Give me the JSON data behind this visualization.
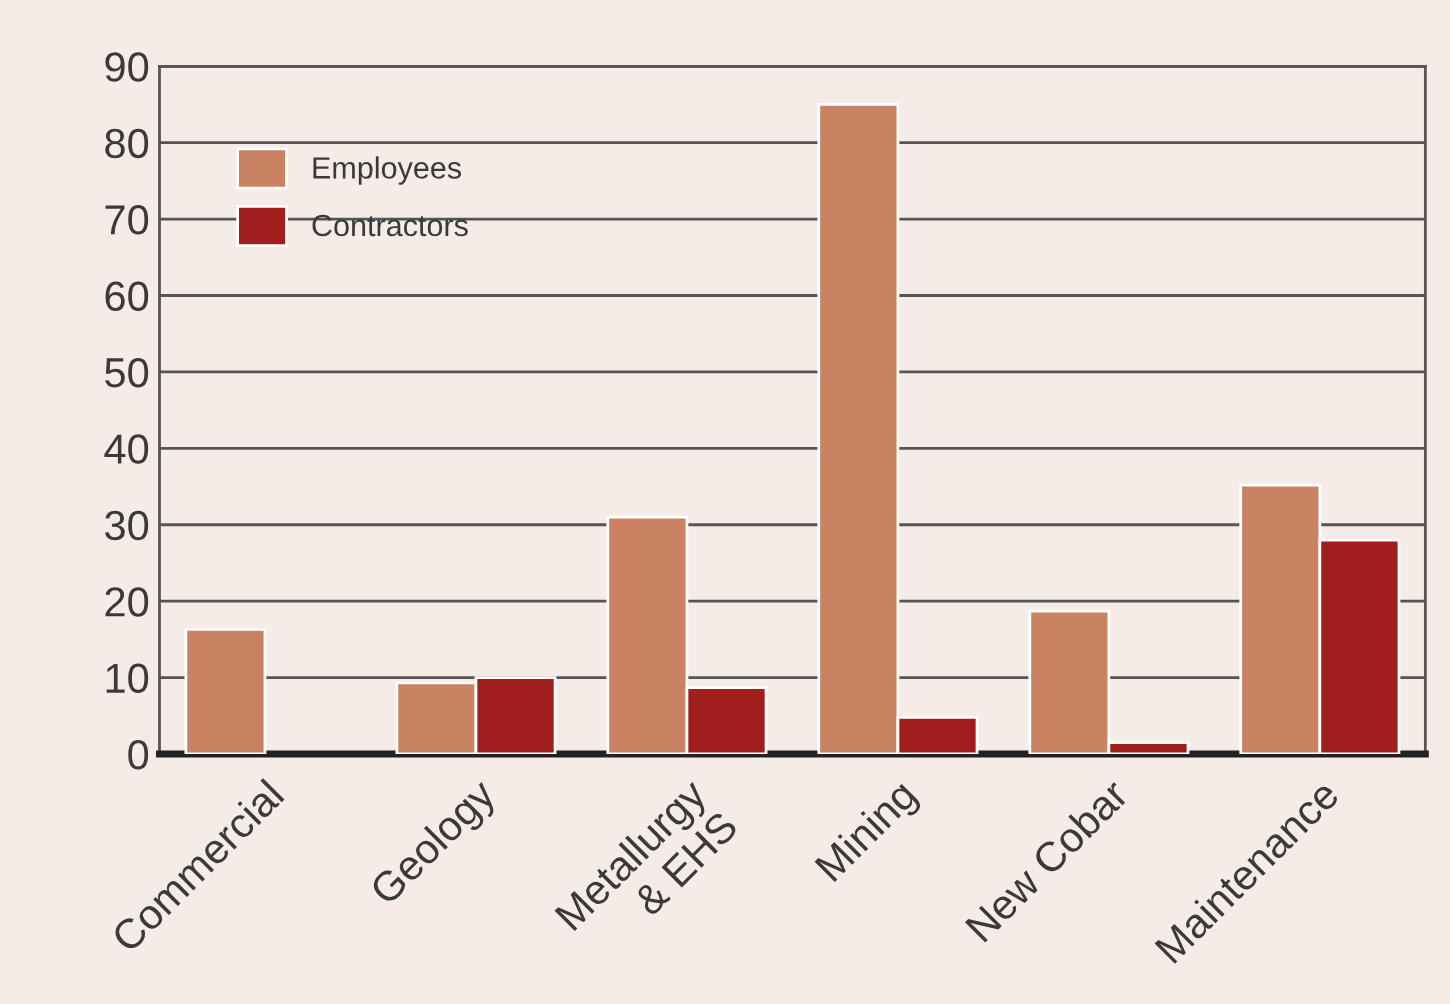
{
  "chart_data": {
    "type": "bar",
    "categories": [
      "Commercial",
      "Geology",
      "Metallurgy\n& EHS",
      "Mining",
      "New Cobar",
      "Maintenance"
    ],
    "series": [
      {
        "name": "Employees",
        "color": "#c98262",
        "values": [
          16.3,
          9.3,
          31,
          85,
          18.7,
          35.2
        ]
      },
      {
        "name": "Contractors",
        "color": "#a01f1c",
        "values": [
          null,
          10,
          8.7,
          4.8,
          1.5,
          28
        ]
      }
    ],
    "ylim": [
      0,
      90
    ],
    "yticks": [
      0,
      10,
      20,
      30,
      40,
      50,
      60,
      70,
      80,
      90
    ],
    "grid": "y",
    "legend": "top left"
  }
}
